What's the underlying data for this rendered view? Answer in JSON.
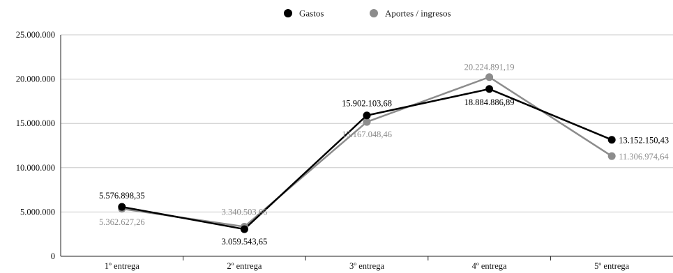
{
  "chart_data": {
    "type": "line",
    "title": "",
    "xlabel": "",
    "ylabel": "",
    "categories": [
      "1º entrega",
      "2º entrega",
      "3º entrega",
      "4º entrega",
      "5º entrega"
    ],
    "ylim": [
      0,
      25000000
    ],
    "yticks": [
      0,
      5000000,
      10000000,
      15000000,
      20000000,
      25000000
    ],
    "ytick_labels": [
      "0",
      "5.000.000",
      "10.000.000",
      "15.000.000",
      "20.000.000",
      "25.000.000"
    ],
    "grid": true,
    "legend_position": "top-center",
    "series": [
      {
        "name": "Gastos",
        "color": "#000000",
        "values": [
          5576898.35,
          3059543.65,
          15902103.68,
          18884886.89,
          13152150.43
        ],
        "labels": [
          "5.576.898,35",
          "3.059.543,65",
          "15.902.103,68",
          "18.884.886,89",
          "13.152.150,43"
        ]
      },
      {
        "name": "Aportes / ingresos",
        "color": "#8c8c8c",
        "values": [
          5362627.26,
          3340503.66,
          15167048.46,
          20224891.19,
          11306974.64
        ],
        "labels": [
          "5.362.627,26",
          "3.340.503,66",
          "15.167.048,46",
          "20.224.891,19",
          "11.306.974,64"
        ]
      }
    ]
  }
}
